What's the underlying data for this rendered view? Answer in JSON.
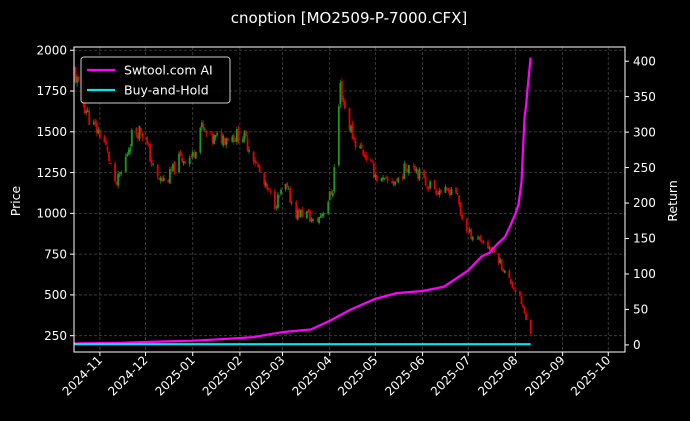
{
  "chart_data": {
    "type": "candlestick+line",
    "title": "cnoption [MO2509-P-7000.CFX]",
    "xlabel": "",
    "ylabel_left": "Price",
    "ylabel_right": "Return",
    "x_range": [
      "2024-10-15",
      "2025-10-12"
    ],
    "ylim_left": [
      150,
      2020
    ],
    "ylim_right": [
      -10,
      420
    ],
    "x_ticks": [
      "2024-11",
      "2024-12",
      "2025-01",
      "2025-02",
      "2025-03",
      "2025-04",
      "2025-05",
      "2025-06",
      "2025-07",
      "2025-08",
      "2025-09",
      "2025-10"
    ],
    "y_ticks_left": [
      250,
      500,
      750,
      1000,
      1250,
      1500,
      1750,
      2000
    ],
    "y_ticks_right": [
      0,
      50,
      100,
      150,
      200,
      250,
      300,
      350,
      400
    ],
    "grid": true,
    "legend_position": "top-left",
    "colors": {
      "up": "#1a9a1a",
      "down": "#e00000",
      "ai": "#ff00ff",
      "hold": "#00e5ee",
      "background": "#000000"
    },
    "price_anchors": [
      [
        "2024-10-15",
        1870
      ],
      [
        "2024-10-20",
        1700
      ],
      [
        "2024-10-27",
        1540
      ],
      [
        "2024-11-03",
        1470
      ],
      [
        "2024-11-08",
        1300
      ],
      [
        "2024-11-11",
        1160
      ],
      [
        "2024-11-16",
        1270
      ],
      [
        "2024-11-22",
        1480
      ],
      [
        "2024-11-28",
        1520
      ],
      [
        "2024-12-03",
        1380
      ],
      [
        "2024-12-08",
        1210
      ],
      [
        "2024-12-15",
        1200
      ],
      [
        "2024-12-23",
        1330
      ],
      [
        "2025-01-01",
        1350
      ],
      [
        "2025-01-06",
        1530
      ],
      [
        "2025-01-13",
        1450
      ],
      [
        "2025-01-23",
        1470
      ],
      [
        "2025-02-03",
        1480
      ],
      [
        "2025-02-10",
        1350
      ],
      [
        "2025-02-17",
        1170
      ],
      [
        "2025-02-24",
        1060
      ],
      [
        "2025-03-03",
        1160
      ],
      [
        "2025-03-10",
        1000
      ],
      [
        "2025-03-17",
        1000
      ],
      [
        "2025-03-22",
        930
      ],
      [
        "2025-03-28",
        1020
      ],
      [
        "2025-04-03",
        1150
      ],
      [
        "2025-04-08",
        1780
      ],
      [
        "2025-04-12",
        1600
      ],
      [
        "2025-04-17",
        1450
      ],
      [
        "2025-04-25",
        1350
      ],
      [
        "2025-05-03",
        1200
      ],
      [
        "2025-05-08",
        1190
      ],
      [
        "2025-05-15",
        1200
      ],
      [
        "2025-05-25",
        1330
      ],
      [
        "2025-06-01",
        1200
      ],
      [
        "2025-06-10",
        1150
      ],
      [
        "2025-06-17",
        1120
      ],
      [
        "2025-06-22",
        1180
      ],
      [
        "2025-06-26",
        1000
      ],
      [
        "2025-07-01",
        880
      ],
      [
        "2025-07-08",
        850
      ],
      [
        "2025-07-15",
        790
      ],
      [
        "2025-07-21",
        720
      ],
      [
        "2025-07-26",
        620
      ],
      [
        "2025-07-30",
        560
      ],
      [
        "2025-08-03",
        500
      ],
      [
        "2025-08-06",
        420
      ],
      [
        "2025-08-09",
        300
      ],
      [
        "2025-08-11",
        280
      ]
    ],
    "series": [
      {
        "name": "Swtool.com AI",
        "color": "#ff00ff",
        "points": [
          [
            "2024-10-15",
            2
          ],
          [
            "2024-11-15",
            3
          ],
          [
            "2024-12-15",
            5
          ],
          [
            "2025-01-01",
            6
          ],
          [
            "2025-01-20",
            8
          ],
          [
            "2025-02-10",
            11
          ],
          [
            "2025-03-01",
            18
          ],
          [
            "2025-03-20",
            22
          ],
          [
            "2025-04-01",
            34
          ],
          [
            "2025-04-15",
            50
          ],
          [
            "2025-05-01",
            65
          ],
          [
            "2025-05-15",
            73
          ],
          [
            "2025-06-01",
            76
          ],
          [
            "2025-06-15",
            82
          ],
          [
            "2025-07-01",
            105
          ],
          [
            "2025-07-10",
            125
          ],
          [
            "2025-07-15",
            130
          ],
          [
            "2025-07-20",
            142
          ],
          [
            "2025-07-25",
            152
          ],
          [
            "2025-07-28",
            165
          ],
          [
            "2025-08-01",
            185
          ],
          [
            "2025-08-03",
            198
          ],
          [
            "2025-08-05",
            230
          ],
          [
            "2025-08-07",
            320
          ],
          [
            "2025-08-08",
            338
          ],
          [
            "2025-08-09",
            362
          ],
          [
            "2025-08-11",
            405
          ]
        ]
      },
      {
        "name": "Buy-and-Hold",
        "color": "#00e5ee",
        "points": [
          [
            "2024-10-15",
            1
          ],
          [
            "2025-08-11",
            1
          ]
        ]
      }
    ]
  }
}
